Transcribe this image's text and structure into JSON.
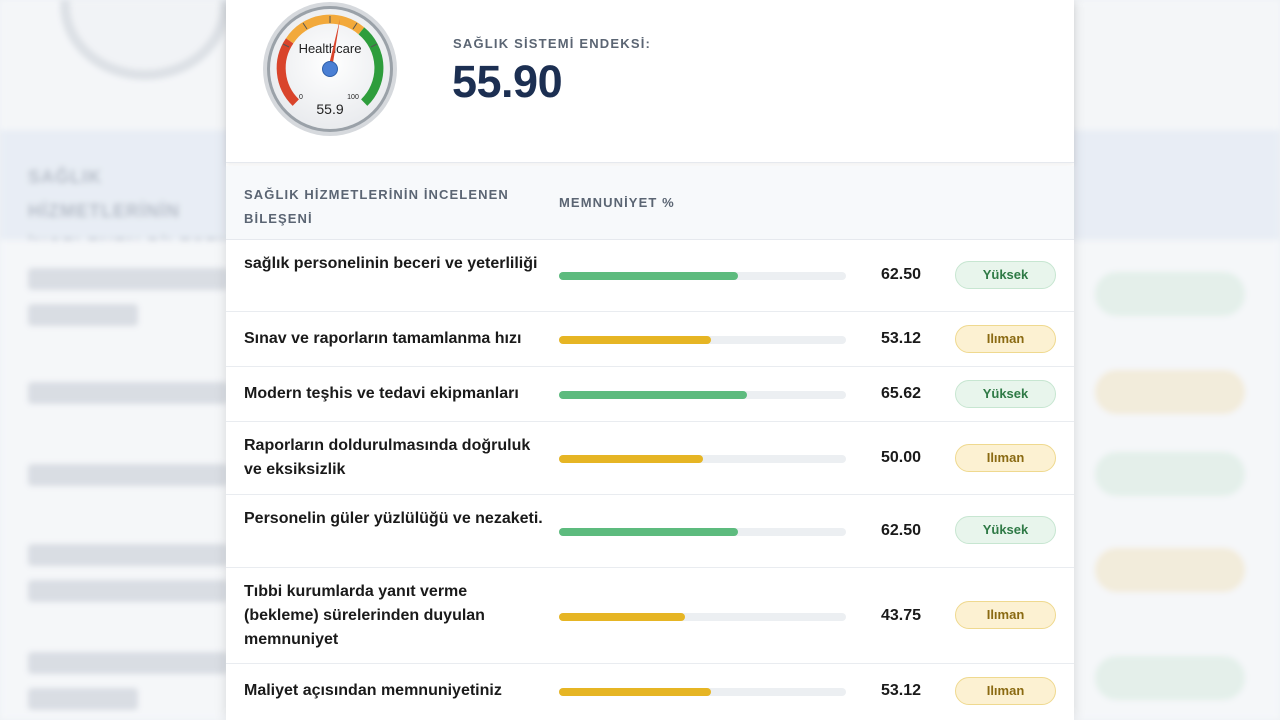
{
  "score": {
    "gauge_title": "Healthcare",
    "gauge_min": "0",
    "gauge_max": "100",
    "gauge_value": 55.9,
    "gauge_value_label": "55.9",
    "label": "SAĞLIK SİSTEMİ ENDEKSİ:",
    "value": "55.90"
  },
  "table": {
    "col_component": "SAĞLIK HİZMETLERİNİN İNCELENEN BİLEŞENİ",
    "col_satisfaction": "MEMNUNİYET %",
    "rows": [
      {
        "label": "sağlık personelinin beceri ve yeterliliği",
        "value": "62.50",
        "percent": 62.5,
        "level": "Yüksek",
        "tone": "g"
      },
      {
        "label": "Sınav ve raporların tamamlanma hızı",
        "value": "53.12",
        "percent": 53.12,
        "level": "Ilıman",
        "tone": "y"
      },
      {
        "label": "Modern teşhis ve tedavi ekipmanları",
        "value": "65.62",
        "percent": 65.62,
        "level": "Yüksek",
        "tone": "g"
      },
      {
        "label": "Raporların doldurulmasında doğruluk ve eksiksizlik",
        "value": "50.00",
        "percent": 50.0,
        "level": "Ilıman",
        "tone": "y"
      },
      {
        "label": "Personelin güler yüzlülüğü ve nezaketi.",
        "value": "62.50",
        "percent": 62.5,
        "level": "Yüksek",
        "tone": "g"
      },
      {
        "label": "Tıbbi kurumlarda yanıt verme (bekleme) sürelerinden duyulan memnuniyet",
        "value": "43.75",
        "percent": 43.75,
        "level": "Ilıman",
        "tone": "y"
      },
      {
        "label": "Maliyet açısından memnuniyetiniz",
        "value": "53.12",
        "percent": 53.12,
        "level": "Ilıman",
        "tone": "y"
      }
    ]
  },
  "colors": {
    "high": "#5dbb7e",
    "moderate": "#e6b524",
    "gauge_red": "#d9442b",
    "gauge_orange": "#f2a93b",
    "gauge_green": "#2e9d3c",
    "score_text": "#1c2f52"
  },
  "icons": {
    "gauge": "speedometer-gauge-icon"
  }
}
